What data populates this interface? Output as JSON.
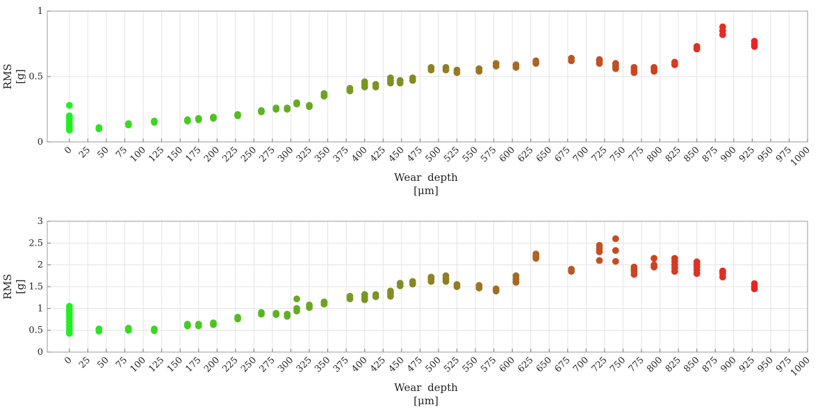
{
  "chart_data": [
    {
      "type": "scatter",
      "title": "",
      "xlabel": "Wear depth",
      "xunit": "[μm]",
      "ylabel": "RMS",
      "yunit": "[g]",
      "xlim": [
        -30,
        1000
      ],
      "ylim": [
        0,
        1
      ],
      "xticks": [
        0,
        25,
        50,
        75,
        100,
        125,
        150,
        175,
        200,
        225,
        250,
        275,
        300,
        325,
        350,
        375,
        400,
        425,
        450,
        475,
        500,
        525,
        550,
        575,
        600,
        625,
        650,
        675,
        700,
        725,
        750,
        775,
        800,
        825,
        850,
        875,
        900,
        925,
        950,
        975,
        1000
      ],
      "yticks": [
        0,
        0.5,
        1
      ],
      "ytick_labels": [
        "0",
        "0.5",
        "1"
      ],
      "grid": true,
      "color_scale": {
        "low": "#22ee22",
        "high": "#ee2222"
      },
      "points": [
        {
          "x": 0,
          "y": [
            0.28,
            0.2,
            0.18,
            0.16,
            0.14,
            0.12,
            0.1,
            0.09
          ]
        },
        {
          "x": 40,
          "y": [
            0.1,
            0.11
          ]
        },
        {
          "x": 80,
          "y": [
            0.13,
            0.14
          ]
        },
        {
          "x": 115,
          "y": [
            0.15,
            0.16
          ]
        },
        {
          "x": 160,
          "y": [
            0.16,
            0.17
          ]
        },
        {
          "x": 175,
          "y": [
            0.17,
            0.18
          ]
        },
        {
          "x": 195,
          "y": [
            0.18,
            0.19
          ]
        },
        {
          "x": 228,
          "y": [
            0.2,
            0.21
          ]
        },
        {
          "x": 260,
          "y": [
            0.23,
            0.24
          ]
        },
        {
          "x": 280,
          "y": [
            0.25,
            0.26
          ]
        },
        {
          "x": 295,
          "y": [
            0.25,
            0.26
          ]
        },
        {
          "x": 308,
          "y": [
            0.29,
            0.3
          ]
        },
        {
          "x": 325,
          "y": [
            0.27,
            0.28
          ]
        },
        {
          "x": 345,
          "y": [
            0.35,
            0.37
          ]
        },
        {
          "x": 380,
          "y": [
            0.39,
            0.41
          ]
        },
        {
          "x": 400,
          "y": [
            0.42,
            0.44,
            0.46
          ]
        },
        {
          "x": 415,
          "y": [
            0.42,
            0.44
          ]
        },
        {
          "x": 435,
          "y": [
            0.45,
            0.47,
            0.49
          ]
        },
        {
          "x": 448,
          "y": [
            0.45,
            0.47
          ]
        },
        {
          "x": 465,
          "y": [
            0.47,
            0.49
          ]
        },
        {
          "x": 490,
          "y": [
            0.55,
            0.57
          ]
        },
        {
          "x": 510,
          "y": [
            0.55,
            0.57
          ]
        },
        {
          "x": 525,
          "y": [
            0.53,
            0.55
          ]
        },
        {
          "x": 555,
          "y": [
            0.54,
            0.56
          ]
        },
        {
          "x": 578,
          "y": [
            0.58,
            0.6
          ]
        },
        {
          "x": 605,
          "y": [
            0.57,
            0.59
          ]
        },
        {
          "x": 632,
          "y": [
            0.6,
            0.62
          ]
        },
        {
          "x": 680,
          "y": [
            0.62,
            0.64
          ]
        },
        {
          "x": 718,
          "y": [
            0.6,
            0.62,
            0.63
          ]
        },
        {
          "x": 740,
          "y": [
            0.56,
            0.58,
            0.6
          ]
        },
        {
          "x": 765,
          "y": [
            0.53,
            0.55,
            0.57
          ]
        },
        {
          "x": 792,
          "y": [
            0.54,
            0.56,
            0.57
          ]
        },
        {
          "x": 820,
          "y": [
            0.59,
            0.61
          ]
        },
        {
          "x": 850,
          "y": [
            0.71,
            0.73
          ]
        },
        {
          "x": 885,
          "y": [
            0.82,
            0.85,
            0.88
          ]
        },
        {
          "x": 928,
          "y": [
            0.73,
            0.75,
            0.77
          ]
        }
      ]
    },
    {
      "type": "scatter",
      "title": "",
      "xlabel": "Wear depth",
      "xunit": "[μm]",
      "ylabel": "RMS",
      "yunit": "[g]",
      "xlim": [
        -30,
        1000
      ],
      "ylim": [
        0,
        3
      ],
      "xticks": [
        0,
        25,
        50,
        75,
        100,
        125,
        150,
        175,
        200,
        225,
        250,
        275,
        300,
        325,
        350,
        375,
        400,
        425,
        450,
        475,
        500,
        525,
        550,
        575,
        600,
        625,
        650,
        675,
        700,
        725,
        750,
        775,
        800,
        825,
        850,
        875,
        900,
        925,
        950,
        975,
        1000
      ],
      "yticks": [
        0,
        0.5,
        1,
        1.5,
        2,
        2.5,
        3
      ],
      "ytick_labels": [
        "0",
        "0.5",
        "1",
        "1.5",
        "2",
        "2.5",
        "3"
      ],
      "grid": true,
      "color_scale": {
        "low": "#22ee22",
        "high": "#ee2222"
      },
      "points": [
        {
          "x": 0,
          "y": [
            1.05,
            0.98,
            0.92,
            0.85,
            0.78,
            0.7,
            0.62,
            0.55,
            0.48,
            0.43
          ]
        },
        {
          "x": 40,
          "y": [
            0.48,
            0.53
          ]
        },
        {
          "x": 80,
          "y": [
            0.5,
            0.55
          ]
        },
        {
          "x": 115,
          "y": [
            0.49,
            0.53
          ]
        },
        {
          "x": 160,
          "y": [
            0.6,
            0.64
          ]
        },
        {
          "x": 175,
          "y": [
            0.6,
            0.64
          ]
        },
        {
          "x": 195,
          "y": [
            0.63,
            0.67
          ]
        },
        {
          "x": 228,
          "y": [
            0.76,
            0.8
          ]
        },
        {
          "x": 260,
          "y": [
            0.87,
            0.91
          ]
        },
        {
          "x": 280,
          "y": [
            0.86,
            0.89
          ]
        },
        {
          "x": 295,
          "y": [
            0.82,
            0.87
          ]
        },
        {
          "x": 308,
          "y": [
            0.94,
            1.0,
            1.22
          ]
        },
        {
          "x": 325,
          "y": [
            1.02,
            1.08
          ]
        },
        {
          "x": 345,
          "y": [
            1.1,
            1.15
          ]
        },
        {
          "x": 380,
          "y": [
            1.22,
            1.28
          ]
        },
        {
          "x": 400,
          "y": [
            1.2,
            1.26,
            1.32
          ]
        },
        {
          "x": 415,
          "y": [
            1.27,
            1.32
          ]
        },
        {
          "x": 435,
          "y": [
            1.28,
            1.34,
            1.4
          ]
        },
        {
          "x": 448,
          "y": [
            1.52,
            1.58
          ]
        },
        {
          "x": 465,
          "y": [
            1.56,
            1.62
          ]
        },
        {
          "x": 490,
          "y": [
            1.62,
            1.67,
            1.72
          ]
        },
        {
          "x": 510,
          "y": [
            1.62,
            1.68,
            1.75
          ]
        },
        {
          "x": 525,
          "y": [
            1.5,
            1.55
          ]
        },
        {
          "x": 555,
          "y": [
            1.47,
            1.53
          ]
        },
        {
          "x": 578,
          "y": [
            1.4,
            1.45
          ]
        },
        {
          "x": 605,
          "y": [
            1.6,
            1.67,
            1.75
          ]
        },
        {
          "x": 632,
          "y": [
            2.15,
            2.2,
            2.25
          ]
        },
        {
          "x": 680,
          "y": [
            1.85,
            1.9
          ]
        },
        {
          "x": 718,
          "y": [
            2.1,
            2.3,
            2.38,
            2.45
          ]
        },
        {
          "x": 740,
          "y": [
            2.08,
            2.33,
            2.6
          ]
        },
        {
          "x": 765,
          "y": [
            1.78,
            1.85,
            1.9,
            1.95
          ]
        },
        {
          "x": 792,
          "y": [
            1.95,
            2.0,
            2.15
          ]
        },
        {
          "x": 820,
          "y": [
            1.85,
            1.93,
            2.0,
            2.08,
            2.15
          ]
        },
        {
          "x": 850,
          "y": [
            1.8,
            1.88,
            1.95,
            2.02,
            2.07
          ]
        },
        {
          "x": 885,
          "y": [
            1.72,
            1.8,
            1.86
          ]
        },
        {
          "x": 928,
          "y": [
            1.45,
            1.5,
            1.57
          ]
        }
      ]
    }
  ]
}
